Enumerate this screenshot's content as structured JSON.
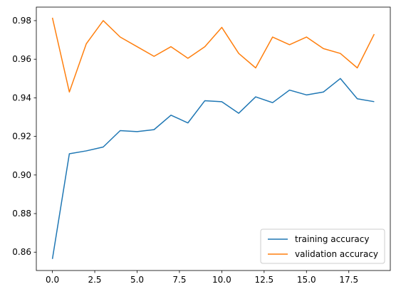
{
  "chart_data": {
    "type": "line",
    "title": "",
    "xlabel": "",
    "ylabel": "",
    "x": [
      0,
      1,
      2,
      3,
      4,
      5,
      6,
      7,
      8,
      9,
      10,
      11,
      12,
      13,
      14,
      15,
      16,
      17,
      18,
      19
    ],
    "xlim": [
      -0.95,
      19.95
    ],
    "ylim": [
      0.8505,
      0.987
    ],
    "x_ticks": [
      0.0,
      2.5,
      5.0,
      7.5,
      10.0,
      12.5,
      15.0,
      17.5
    ],
    "x_tick_labels": [
      "0.0",
      "2.5",
      "5.0",
      "7.5",
      "10.0",
      "12.5",
      "15.0",
      "17.5"
    ],
    "y_ticks": [
      0.86,
      0.88,
      0.9,
      0.92,
      0.94,
      0.96,
      0.98
    ],
    "y_tick_labels": [
      "0.86",
      "0.88",
      "0.90",
      "0.92",
      "0.94",
      "0.96",
      "0.98"
    ],
    "grid": false,
    "legend_position": "lower-right",
    "series": [
      {
        "name": "training accuracy",
        "color": "#1f77b4",
        "values": [
          0.8565,
          0.911,
          0.9125,
          0.9145,
          0.923,
          0.9225,
          0.9235,
          0.931,
          0.927,
          0.9385,
          0.938,
          0.932,
          0.9405,
          0.9375,
          0.944,
          0.9415,
          0.943,
          0.95,
          0.9395,
          0.938
        ]
      },
      {
        "name": "validation accuracy",
        "color": "#ff7f0e",
        "values": [
          0.9815,
          0.943,
          0.968,
          0.98,
          0.9715,
          0.9665,
          0.9615,
          0.9665,
          0.9605,
          0.9665,
          0.9765,
          0.963,
          0.9555,
          0.9715,
          0.9675,
          0.9715,
          0.9655,
          0.963,
          0.9555,
          0.973
        ]
      }
    ]
  }
}
